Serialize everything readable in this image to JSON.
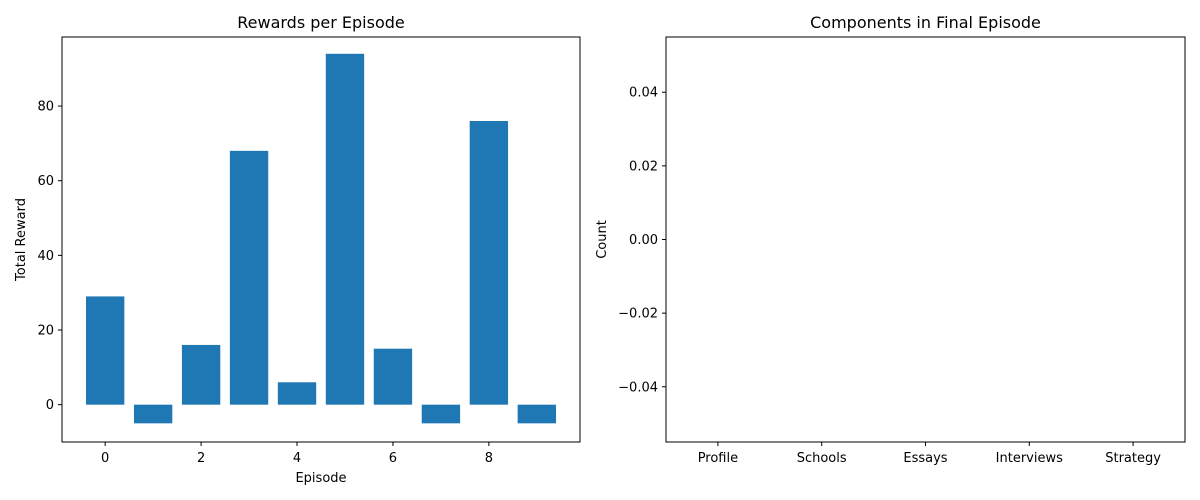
{
  "chart_data": [
    {
      "type": "bar",
      "title": "Rewards per Episode",
      "xlabel": "Episode",
      "ylabel": "Total Reward",
      "x": [
        0,
        1,
        2,
        3,
        4,
        5,
        6,
        7,
        8,
        9
      ],
      "values": [
        29,
        -5,
        16,
        68,
        6,
        94,
        15,
        -5,
        76,
        -5
      ],
      "xticks": [
        0,
        2,
        4,
        6,
        8
      ],
      "yticks": [
        0,
        20,
        40,
        60,
        80
      ],
      "xlim": [
        -0.9,
        9.9
      ],
      "ylim": [
        -10,
        98.5
      ],
      "color": "#1f77b4",
      "grid": false
    },
    {
      "type": "bar",
      "title": "Components in Final Episode",
      "xlabel": "",
      "ylabel": "Count",
      "categories": [
        "Profile",
        "Schools",
        "Essays",
        "Interviews",
        "Strategy"
      ],
      "values": [
        0,
        0,
        0,
        0,
        0
      ],
      "yticks": [
        -0.04,
        -0.02,
        0.0,
        0.02,
        0.04
      ],
      "ytick_labels": [
        "−0.04",
        "−0.02",
        "0.00",
        "0.02",
        "0.04"
      ],
      "ylim": [
        -0.055,
        0.055
      ],
      "color": "#1f77b4",
      "grid": false
    }
  ]
}
